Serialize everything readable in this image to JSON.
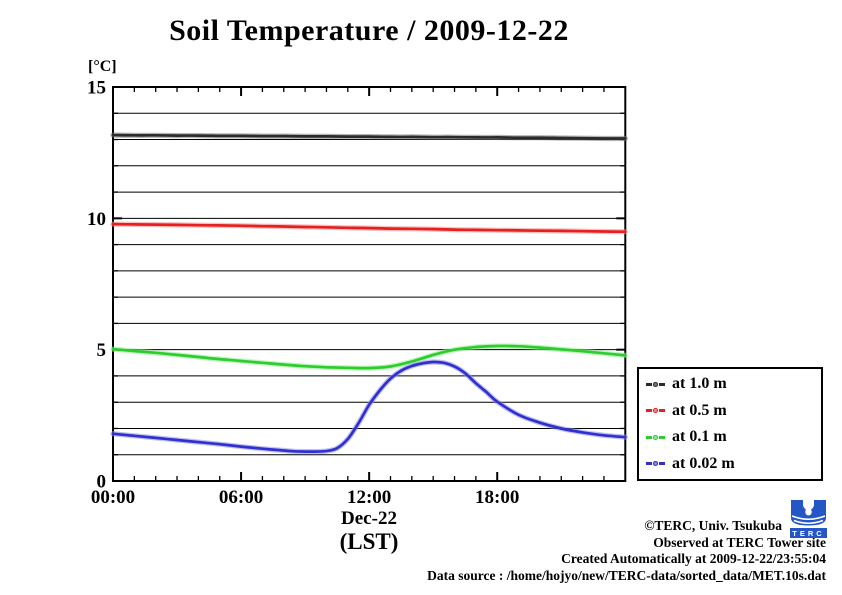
{
  "title": "Soil Temperature / 2009-12-22",
  "axes": {
    "y_unit_label": "[°C]",
    "x_date_label": "Dec-22",
    "x_tz_label": "(LST)"
  },
  "footer": {
    "line1": "©TERC, Univ. Tsukuba",
    "line2": "Observed at TERC Tower site",
    "line3": "Created Automatically at 2009-12-22/23:55:04",
    "line4": "Data source : /home/hojyo/new/TERC-data/sorted_data/MET.10s.dat"
  },
  "logo": {
    "text": "TERC",
    "color": "#2456c8"
  },
  "chart_data": {
    "type": "line",
    "title": "Soil Temperature / 2009-12-22",
    "xlabel": "Dec-22 (LST)",
    "ylabel": "[°C]",
    "xlim": [
      0,
      24
    ],
    "ylim": [
      0,
      15
    ],
    "x_major_ticks": [
      {
        "hour": 0,
        "label": "00:00"
      },
      {
        "hour": 6,
        "label": "06:00"
      },
      {
        "hour": 12,
        "label": "12:00"
      },
      {
        "hour": 18,
        "label": "18:00"
      }
    ],
    "x_minor_tick_interval_hours": 1,
    "y_major_ticks": [
      0,
      5,
      10,
      15
    ],
    "y_gridline_interval": 1,
    "grid": "horizontal-only",
    "legend_position": "outside-right-bottom",
    "series": [
      {
        "name": "at 1.0 m",
        "color": "#2b2b2b",
        "halo_color": "#777777",
        "x": [
          0,
          1,
          2,
          3,
          4,
          5,
          6,
          7,
          8,
          9,
          10,
          11,
          12,
          13,
          14,
          15,
          16,
          17,
          18,
          19,
          20,
          21,
          22,
          23,
          24
        ],
        "y": [
          13.17,
          13.16,
          13.16,
          13.15,
          13.15,
          13.14,
          13.14,
          13.13,
          13.13,
          13.12,
          13.12,
          13.11,
          13.11,
          13.1,
          13.1,
          13.09,
          13.09,
          13.08,
          13.08,
          13.07,
          13.07,
          13.06,
          13.05,
          13.04,
          13.04
        ]
      },
      {
        "name": "at 0.5 m",
        "color": "#e62020",
        "halo_color": "#f58a8a",
        "x": [
          0,
          1,
          2,
          3,
          4,
          5,
          6,
          7,
          8,
          9,
          10,
          11,
          12,
          13,
          14,
          15,
          16,
          17,
          18,
          19,
          20,
          21,
          22,
          23,
          24
        ],
        "y": [
          9.78,
          9.77,
          9.76,
          9.75,
          9.74,
          9.73,
          9.72,
          9.7,
          9.69,
          9.67,
          9.66,
          9.64,
          9.63,
          9.61,
          9.6,
          9.59,
          9.57,
          9.56,
          9.55,
          9.54,
          9.53,
          9.52,
          9.51,
          9.5,
          9.49
        ]
      },
      {
        "name": "at 0.1 m",
        "color": "#2ecc2e",
        "halo_color": "#8aef8a",
        "x": [
          0,
          1,
          2,
          3,
          4,
          5,
          6,
          7,
          8,
          9,
          10,
          11,
          12,
          13,
          14,
          15,
          16,
          17,
          18,
          19,
          20,
          21,
          22,
          23,
          24
        ],
        "y": [
          5.02,
          4.95,
          4.88,
          4.8,
          4.72,
          4.64,
          4.57,
          4.5,
          4.43,
          4.37,
          4.33,
          4.31,
          4.3,
          4.36,
          4.55,
          4.8,
          5.0,
          5.1,
          5.14,
          5.13,
          5.08,
          5.01,
          4.94,
          4.86,
          4.78
        ]
      },
      {
        "name": "at 0.02 m",
        "color": "#3030cf",
        "halo_color": "#8c8ce8",
        "x": [
          0,
          1,
          2,
          3,
          4,
          5,
          6,
          7,
          8,
          8.5,
          9,
          9.5,
          10,
          10.5,
          11,
          11.5,
          12,
          12.5,
          13,
          13.5,
          14,
          14.5,
          15,
          15.5,
          16,
          16.5,
          17,
          17.5,
          18,
          19,
          20,
          21,
          22,
          23,
          24
        ],
        "y": [
          1.8,
          1.72,
          1.64,
          1.56,
          1.48,
          1.4,
          1.31,
          1.23,
          1.16,
          1.13,
          1.12,
          1.12,
          1.14,
          1.25,
          1.6,
          2.2,
          2.9,
          3.45,
          3.9,
          4.2,
          4.38,
          4.48,
          4.53,
          4.5,
          4.36,
          4.1,
          3.72,
          3.38,
          3.02,
          2.52,
          2.22,
          2.0,
          1.85,
          1.74,
          1.67
        ]
      }
    ]
  }
}
